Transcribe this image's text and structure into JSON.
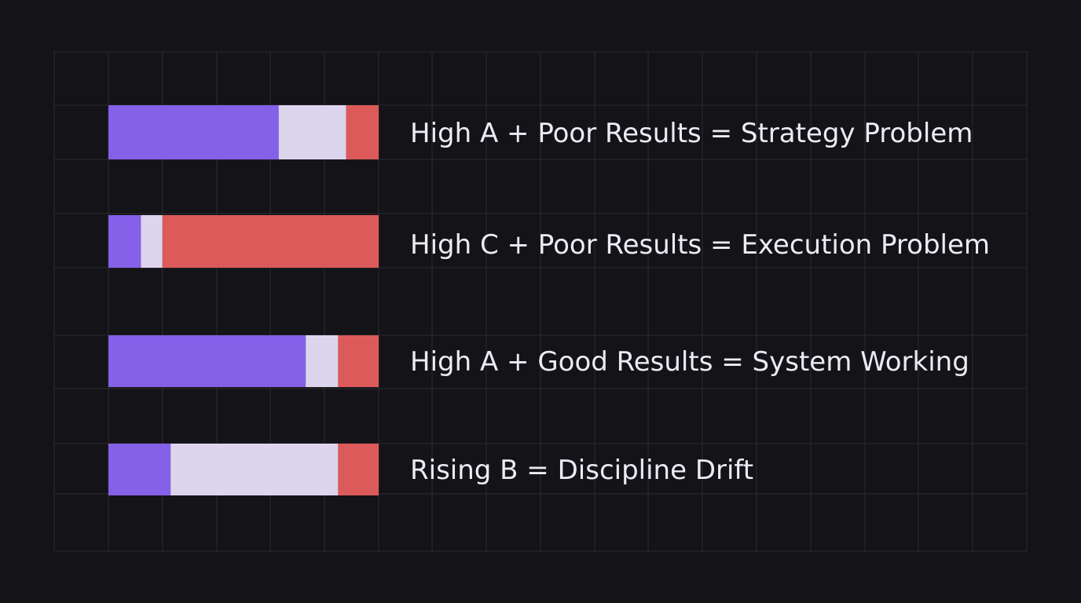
{
  "colors": {
    "background": "#141318",
    "grid": "#2b2b31",
    "segment_a": "#8560e8",
    "segment_b": "#ddd4ee",
    "segment_c": "#dc5b5a",
    "label_text": "#ecebf3"
  },
  "chart_data": {
    "type": "bar",
    "orientation": "horizontal",
    "stacked": true,
    "normalized_to": 1.0,
    "grid": true,
    "segment_keys": [
      "a",
      "b",
      "c"
    ],
    "rows": [
      {
        "label": "High A + Poor Results = Strategy Problem",
        "a": 0.63,
        "b": 0.25,
        "c": 0.12
      },
      {
        "label": "High C + Poor Results = Execution Problem",
        "a": 0.12,
        "b": 0.08,
        "c": 0.8
      },
      {
        "label": "High A + Good Results = System Working",
        "a": 0.73,
        "b": 0.12,
        "c": 0.15
      },
      {
        "label": "Rising B = Discipline Drift",
        "a": 0.23,
        "b": 0.62,
        "c": 0.15
      }
    ]
  }
}
